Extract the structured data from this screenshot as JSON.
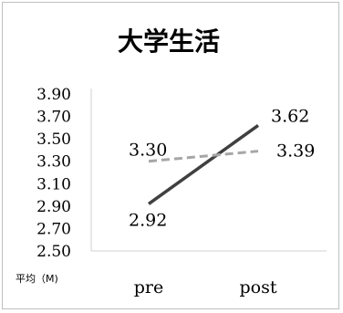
{
  "chart_data": {
    "type": "line",
    "title": "大学生活",
    "ylabel": "平均（M)",
    "xlabel": "",
    "categories": [
      "pre",
      "post"
    ],
    "ylim": [
      2.5,
      3.9
    ],
    "yticks": [
      "3.90",
      "3.70",
      "3.50",
      "3.30",
      "3.10",
      "2.90",
      "2.70",
      "2.50"
    ],
    "grid": false,
    "series": [
      {
        "values": [
          2.92,
          3.62
        ],
        "labels": [
          "2.92",
          "3.62"
        ],
        "color": "#404040",
        "style": "solid"
      },
      {
        "values": [
          3.3,
          3.39
        ],
        "labels": [
          "3.30",
          "3.39"
        ],
        "color": "#a6a6a6",
        "style": "dashed"
      }
    ]
  }
}
